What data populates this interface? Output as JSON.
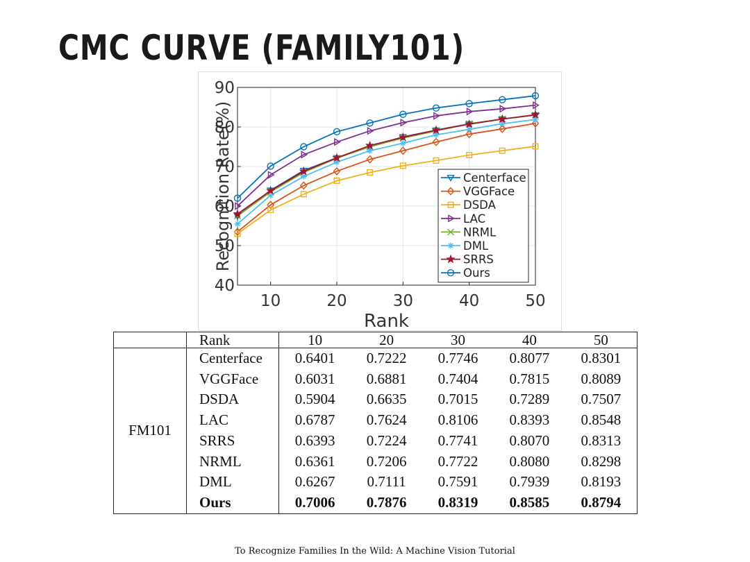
{
  "slide": {
    "title": "CMC CURVE (FAMILY101)",
    "footer": "To Recognize Families In the Wild: A Machine Vision Tutorial"
  },
  "chart_data": {
    "type": "line",
    "title": "",
    "xlabel": "Rank",
    "ylabel": "Recognition Rate(%)",
    "xlim": [
      5,
      50
    ],
    "ylim": [
      40,
      90
    ],
    "xticks": [
      10,
      20,
      30,
      40,
      50
    ],
    "yticks": [
      40,
      50,
      60,
      70,
      80,
      90
    ],
    "grid": true,
    "legend_position": "lower-right",
    "x": [
      5,
      10,
      15,
      20,
      25,
      30,
      35,
      40,
      45,
      50
    ],
    "series": [
      {
        "name": "Centerface",
        "color": "#0072BD",
        "marker": "triangle-down",
        "values": [
          57.5,
          64.0,
          69.0,
          72.2,
          75.0,
          77.5,
          79.2,
          80.8,
          82.0,
          83.0
        ]
      },
      {
        "name": "VGGFace",
        "color": "#D95319",
        "marker": "diamond",
        "values": [
          53.5,
          60.3,
          65.2,
          68.8,
          71.8,
          74.0,
          76.2,
          78.2,
          79.5,
          80.9
        ]
      },
      {
        "name": "DSDA",
        "color": "#EDB120",
        "marker": "square",
        "values": [
          53.0,
          59.0,
          63.0,
          66.4,
          68.5,
          70.2,
          71.5,
          72.9,
          74.0,
          75.1
        ]
      },
      {
        "name": "LAC",
        "color": "#7E2F8E",
        "marker": "triangle-right",
        "values": [
          60.0,
          67.9,
          73.0,
          76.2,
          79.0,
          81.1,
          82.8,
          83.9,
          84.6,
          85.5
        ]
      },
      {
        "name": "NRML",
        "color": "#77AC30",
        "marker": "x",
        "values": [
          57.5,
          63.6,
          68.5,
          72.1,
          75.0,
          77.2,
          79.0,
          80.8,
          82.0,
          83.0
        ]
      },
      {
        "name": "DML",
        "color": "#4DBEEE",
        "marker": "asterisk",
        "values": [
          55.5,
          62.7,
          67.5,
          71.1,
          74.0,
          75.9,
          78.0,
          79.4,
          80.8,
          81.9
        ]
      },
      {
        "name": "SRRS",
        "color": "#A2142F",
        "marker": "star",
        "values": [
          58.0,
          63.9,
          68.8,
          72.2,
          75.3,
          77.4,
          79.2,
          80.7,
          82.0,
          83.1
        ]
      },
      {
        "name": "Ours",
        "color": "#0072BD",
        "marker": "circle",
        "values": [
          62.0,
          70.1,
          75.0,
          78.8,
          81.0,
          83.2,
          84.8,
          85.9,
          86.9,
          87.9
        ]
      }
    ]
  },
  "table": {
    "headers": [
      "",
      "Rank",
      "10",
      "20",
      "30",
      "40",
      "50"
    ],
    "dataset": "FM101",
    "rows": [
      {
        "method": "Centerface",
        "values": [
          "0.6401",
          "0.7222",
          "0.7746",
          "0.8077",
          "0.8301"
        ],
        "bold": false
      },
      {
        "method": "VGGFace",
        "values": [
          "0.6031",
          "0.6881",
          "0.7404",
          "0.7815",
          "0.8089"
        ],
        "bold": false
      },
      {
        "method": "DSDA",
        "values": [
          "0.5904",
          "0.6635",
          "0.7015",
          "0.7289",
          "0.7507"
        ],
        "bold": false
      },
      {
        "method": "LAC",
        "values": [
          "0.6787",
          "0.7624",
          "0.8106",
          "0.8393",
          "0.8548"
        ],
        "bold": false
      },
      {
        "method": "SRRS",
        "values": [
          "0.6393",
          "0.7224",
          "0.7741",
          "0.8070",
          "0.8313"
        ],
        "bold": false
      },
      {
        "method": "NRML",
        "values": [
          "0.6361",
          "0.7206",
          "0.7722",
          "0.8080",
          "0.8298"
        ],
        "bold": false
      },
      {
        "method": "DML",
        "values": [
          "0.6267",
          "0.7111",
          "0.7591",
          "0.7939",
          "0.8193"
        ],
        "bold": false
      },
      {
        "method": "Ours",
        "values": [
          "0.7006",
          "0.7876",
          "0.8319",
          "0.8585",
          "0.8794"
        ],
        "bold": true
      }
    ]
  }
}
